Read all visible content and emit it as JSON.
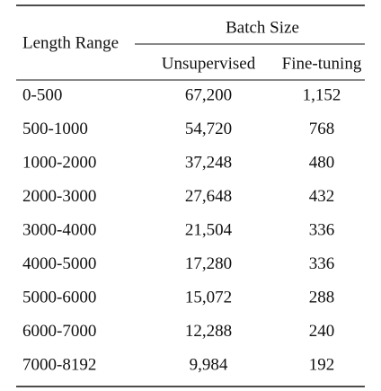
{
  "table": {
    "header": {
      "row_label": "Length Range",
      "group": "Batch Size",
      "columns": [
        "Unsupervised",
        "Fine-tuning"
      ]
    },
    "rows": [
      [
        "0-500",
        "67,200",
        "1,152"
      ],
      [
        "500-1000",
        "54,720",
        "768"
      ],
      [
        "1000-2000",
        "37,248",
        "480"
      ],
      [
        "2000-3000",
        "27,648",
        "432"
      ],
      [
        "3000-4000",
        "21,504",
        "336"
      ],
      [
        "4000-5000",
        "17,280",
        "336"
      ],
      [
        "5000-6000",
        "15,072",
        "288"
      ],
      [
        "6000-7000",
        "12,288",
        "240"
      ],
      [
        "7000-8192",
        "9,984",
        "192"
      ]
    ]
  }
}
